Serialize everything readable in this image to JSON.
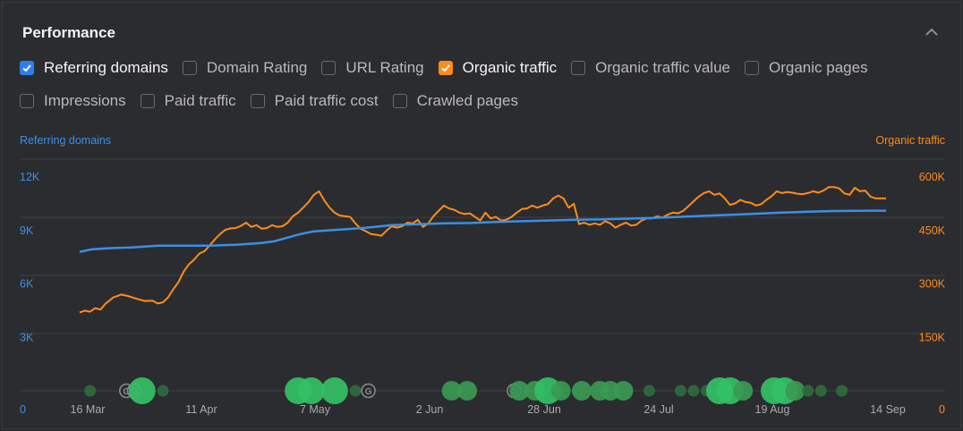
{
  "panel": {
    "title": "Performance"
  },
  "metrics": [
    {
      "label": "Referring domains",
      "checked": true,
      "color": "#2f7ef0"
    },
    {
      "label": "Domain Rating",
      "checked": false
    },
    {
      "label": "URL Rating",
      "checked": false
    },
    {
      "label": "Organic traffic",
      "checked": true,
      "color": "#ff8c1a"
    },
    {
      "label": "Organic traffic value",
      "checked": false
    },
    {
      "label": "Organic pages",
      "checked": false
    },
    {
      "label": "Impressions",
      "checked": false
    },
    {
      "label": "Paid traffic",
      "checked": false
    },
    {
      "label": "Paid traffic cost",
      "checked": false
    },
    {
      "label": "Crawled pages",
      "checked": false
    }
  ],
  "chart_data": {
    "type": "line",
    "left_axis_title": "Referring domains",
    "right_axis_title": "Organic traffic",
    "left_ticks": [
      "0",
      "3K",
      "6K",
      "9K",
      "12K"
    ],
    "right_ticks": [
      "0",
      "150K",
      "300K",
      "450K",
      "600K"
    ],
    "left_ylim": [
      0,
      12000
    ],
    "right_ylim": [
      0,
      600000
    ],
    "x_ticks": [
      "16 Mar",
      "11 Apr",
      "7 May",
      "2 Jun",
      "28 Jun",
      "24 Jul",
      "19 Aug",
      "14 Sep"
    ],
    "grid": true,
    "colors": {
      "referring_domains": "#3b8fe6",
      "organic_traffic": "#ff8c1a",
      "events": "#3dbf5f"
    },
    "series": [
      {
        "name": "Referring domains",
        "axis": "left",
        "points": [
          [
            0,
            7800
          ],
          [
            5,
            7950
          ],
          [
            10,
            8000
          ],
          [
            20,
            8050
          ],
          [
            30,
            8150
          ],
          [
            40,
            8150
          ],
          [
            50,
            8150
          ],
          [
            60,
            8200
          ],
          [
            70,
            8300
          ],
          [
            75,
            8400
          ],
          [
            80,
            8600
          ],
          [
            85,
            8800
          ],
          [
            90,
            8950
          ],
          [
            100,
            9050
          ],
          [
            110,
            9150
          ],
          [
            120,
            9300
          ],
          [
            130,
            9350
          ],
          [
            140,
            9400
          ],
          [
            150,
            9420
          ],
          [
            160,
            9480
          ],
          [
            170,
            9520
          ],
          [
            180,
            9560
          ],
          [
            190,
            9600
          ],
          [
            200,
            9620
          ],
          [
            210,
            9660
          ],
          [
            220,
            9700
          ],
          [
            230,
            9760
          ],
          [
            240,
            9820
          ],
          [
            250,
            9880
          ],
          [
            260,
            9940
          ],
          [
            270,
            10000
          ],
          [
            280,
            10050
          ],
          [
            290,
            10090
          ],
          [
            300,
            10100
          ],
          [
            305,
            10110
          ],
          [
            310,
            10110
          ]
        ]
      },
      {
        "name": "Organic traffic",
        "axis": "right",
        "points": [
          [
            0,
            220000
          ],
          [
            2,
            225000
          ],
          [
            4,
            222000
          ],
          [
            6,
            232000
          ],
          [
            8,
            228000
          ],
          [
            10,
            245000
          ],
          [
            13,
            262000
          ],
          [
            16,
            270000
          ],
          [
            19,
            265000
          ],
          [
            22,
            258000
          ],
          [
            25,
            252000
          ],
          [
            28,
            253000
          ],
          [
            30,
            245000
          ],
          [
            32,
            248000
          ],
          [
            34,
            262000
          ],
          [
            36,
            285000
          ],
          [
            38,
            305000
          ],
          [
            40,
            335000
          ],
          [
            42,
            355000
          ],
          [
            44,
            368000
          ],
          [
            46,
            385000
          ],
          [
            48,
            392000
          ],
          [
            50,
            408000
          ],
          [
            52,
            425000
          ],
          [
            54,
            440000
          ],
          [
            56,
            452000
          ],
          [
            58,
            456000
          ],
          [
            60,
            457000
          ],
          [
            62,
            463000
          ],
          [
            64,
            472000
          ],
          [
            66,
            460000
          ],
          [
            68,
            465000
          ],
          [
            70,
            455000
          ],
          [
            72,
            457000
          ],
          [
            74,
            465000
          ],
          [
            76,
            460000
          ],
          [
            78,
            462000
          ],
          [
            80,
            472000
          ],
          [
            82,
            490000
          ],
          [
            84,
            500000
          ],
          [
            86,
            515000
          ],
          [
            88,
            530000
          ],
          [
            90,
            550000
          ],
          [
            92,
            560000
          ],
          [
            94,
            535000
          ],
          [
            96,
            515000
          ],
          [
            98,
            500000
          ],
          [
            100,
            492000
          ],
          [
            104,
            488000
          ],
          [
            106,
            470000
          ],
          [
            108,
            455000
          ],
          [
            110,
            448000
          ],
          [
            112,
            440000
          ],
          [
            114,
            438000
          ],
          [
            116,
            435000
          ],
          [
            118,
            450000
          ],
          [
            120,
            462000
          ],
          [
            122,
            458000
          ],
          [
            124,
            462000
          ],
          [
            126,
            472000
          ],
          [
            128,
            470000
          ],
          [
            130,
            480000
          ],
          [
            132,
            460000
          ],
          [
            134,
            470000
          ],
          [
            136,
            490000
          ],
          [
            138,
            505000
          ],
          [
            140,
            520000
          ],
          [
            142,
            512000
          ],
          [
            144,
            508000
          ],
          [
            146,
            500000
          ],
          [
            148,
            496000
          ],
          [
            150,
            498000
          ],
          [
            152,
            488000
          ],
          [
            154,
            478000
          ],
          [
            156,
            500000
          ],
          [
            158,
            484000
          ],
          [
            160,
            488000
          ],
          [
            162,
            478000
          ],
          [
            164,
            480000
          ],
          [
            166,
            488000
          ],
          [
            168,
            500000
          ],
          [
            170,
            510000
          ],
          [
            172,
            512000
          ],
          [
            174,
            520000
          ],
          [
            176,
            514000
          ],
          [
            178,
            520000
          ],
          [
            180,
            524000
          ],
          [
            182,
            540000
          ],
          [
            184,
            548000
          ],
          [
            186,
            540000
          ],
          [
            188,
            514000
          ],
          [
            190,
            525000
          ],
          [
            192,
            468000
          ],
          [
            194,
            472000
          ],
          [
            196,
            466000
          ],
          [
            198,
            470000
          ],
          [
            200,
            466000
          ],
          [
            202,
            476000
          ],
          [
            204,
            470000
          ],
          [
            206,
            458000
          ],
          [
            208,
            466000
          ],
          [
            210,
            472000
          ],
          [
            212,
            464000
          ],
          [
            214,
            466000
          ],
          [
            216,
            478000
          ],
          [
            218,
            484000
          ],
          [
            220,
            484000
          ],
          [
            222,
            490000
          ],
          [
            224,
            486000
          ],
          [
            226,
            494000
          ],
          [
            228,
            500000
          ],
          [
            230,
            498000
          ],
          [
            232,
            505000
          ],
          [
            234,
            518000
          ],
          [
            236,
            532000
          ],
          [
            238,
            545000
          ],
          [
            240,
            555000
          ],
          [
            242,
            560000
          ],
          [
            244,
            550000
          ],
          [
            246,
            554000
          ],
          [
            248,
            540000
          ],
          [
            250,
            522000
          ],
          [
            252,
            526000
          ],
          [
            254,
            536000
          ],
          [
            256,
            530000
          ],
          [
            258,
            528000
          ],
          [
            260,
            520000
          ],
          [
            262,
            524000
          ],
          [
            264,
            536000
          ],
          [
            266,
            546000
          ],
          [
            268,
            560000
          ],
          [
            270,
            555000
          ],
          [
            272,
            558000
          ],
          [
            274,
            556000
          ],
          [
            276,
            553000
          ],
          [
            278,
            552000
          ],
          [
            280,
            555000
          ],
          [
            282,
            560000
          ],
          [
            284,
            556000
          ],
          [
            286,
            562000
          ],
          [
            288,
            572000
          ],
          [
            290,
            572000
          ],
          [
            292,
            568000
          ],
          [
            294,
            554000
          ],
          [
            296,
            550000
          ],
          [
            298,
            570000
          ],
          [
            300,
            560000
          ],
          [
            302,
            562000
          ],
          [
            304,
            545000
          ],
          [
            306,
            540000
          ],
          [
            308,
            540000
          ],
          [
            310,
            540000
          ]
        ]
      }
    ],
    "events": [
      {
        "x": 4,
        "size": "small"
      },
      {
        "x": 18,
        "size": "ring"
      },
      {
        "x": 21,
        "size": "ring"
      },
      {
        "x": 24,
        "size": "large"
      },
      {
        "x": 32,
        "size": "small"
      },
      {
        "x": 84,
        "size": "large"
      },
      {
        "x": 89,
        "size": "large"
      },
      {
        "x": 98,
        "size": "large"
      },
      {
        "x": 106,
        "size": "small"
      },
      {
        "x": 111,
        "size": "ring"
      },
      {
        "x": 143,
        "size": "medium"
      },
      {
        "x": 149,
        "size": "medium"
      },
      {
        "x": 167,
        "size": "ring"
      },
      {
        "x": 169,
        "size": "medium"
      },
      {
        "x": 175,
        "size": "medium"
      },
      {
        "x": 180,
        "size": "large"
      },
      {
        "x": 185,
        "size": "medium"
      },
      {
        "x": 193,
        "size": "medium"
      },
      {
        "x": 200,
        "size": "medium"
      },
      {
        "x": 204,
        "size": "medium"
      },
      {
        "x": 209,
        "size": "medium"
      },
      {
        "x": 219,
        "size": "small"
      },
      {
        "x": 231,
        "size": "small"
      },
      {
        "x": 236,
        "size": "small"
      },
      {
        "x": 241,
        "size": "small"
      },
      {
        "x": 246,
        "size": "large"
      },
      {
        "x": 250,
        "size": "large"
      },
      {
        "x": 255,
        "size": "medium"
      },
      {
        "x": 267,
        "size": "large"
      },
      {
        "x": 271,
        "size": "large"
      },
      {
        "x": 275,
        "size": "medium"
      },
      {
        "x": 280,
        "size": "small"
      },
      {
        "x": 285,
        "size": "small"
      },
      {
        "x": 293,
        "size": "small"
      }
    ]
  }
}
